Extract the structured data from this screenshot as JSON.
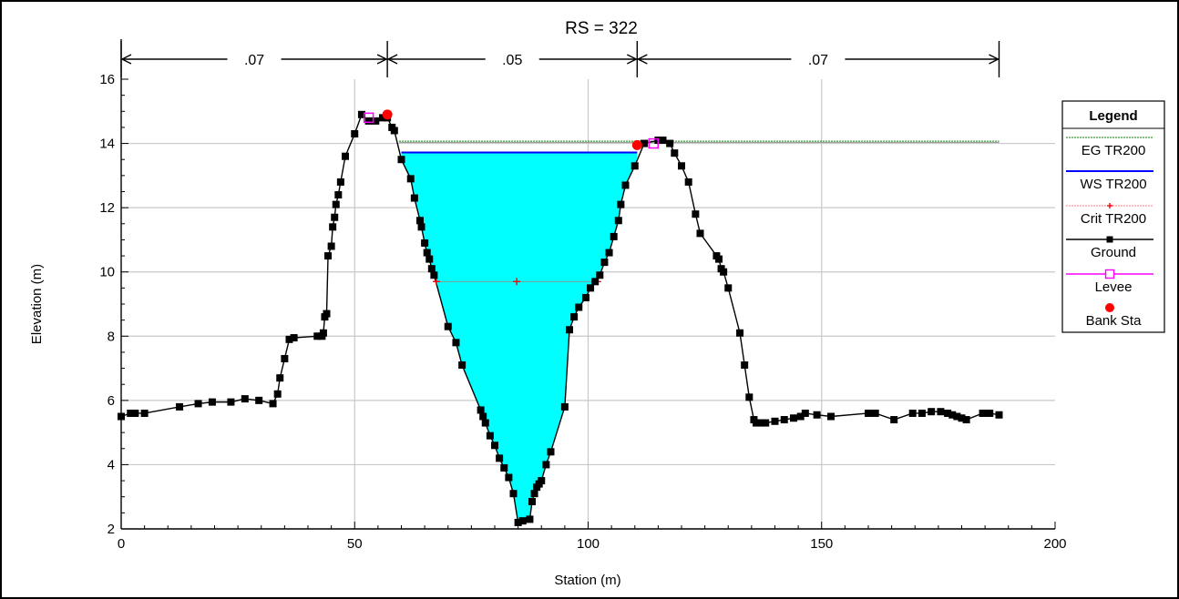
{
  "chart_data": {
    "type": "line",
    "title": "RS = 322",
    "xlabel": "Station (m)",
    "ylabel": "Elevation (m)",
    "xlim": [
      0,
      200
    ],
    "ylim": [
      2,
      16
    ],
    "xticks": [
      0,
      50,
      100,
      150,
      200
    ],
    "yticks": [
      2,
      4,
      6,
      8,
      10,
      12,
      14,
      16
    ],
    "grid": true,
    "legend_position": "right",
    "legend_title": "Legend",
    "legend": [
      "EG TR200",
      "WS TR200",
      "Crit TR200",
      "Ground",
      "Levee",
      "Bank Sta"
    ],
    "manning_n": {
      "values": [
        ".07",
        ".05",
        ".07"
      ],
      "breaks": [
        0,
        57,
        110.5,
        188
      ]
    },
    "series": [
      {
        "name": "EG TR200",
        "color": "#008000",
        "x": [
          59.5,
          188
        ],
        "y": [
          14.07,
          14.07
        ]
      },
      {
        "name": "WS TR200",
        "color": "#0000ff",
        "x": [
          60,
          110.5
        ],
        "y": [
          13.72,
          13.72
        ]
      },
      {
        "name": "Crit TR200",
        "color": "#ff0000",
        "x": [
          67.5,
          84.7,
          102
        ],
        "y": [
          9.7,
          9.7,
          9.7
        ]
      },
      {
        "name": "Ground",
        "color": "#000000",
        "x": [
          0,
          2,
          3,
          5,
          12.5,
          16.5,
          19.5,
          23.5,
          26.5,
          29.5,
          32.5,
          33.5,
          34,
          35,
          36,
          37,
          42,
          43,
          43.3,
          43.6,
          44,
          44.3,
          45,
          45.3,
          45.7,
          46,
          46.5,
          47,
          48,
          50,
          51.5,
          53,
          54.5,
          56,
          57,
          58,
          58.5,
          60,
          62,
          62.8,
          64,
          64.3,
          65,
          65.5,
          66,
          66.5,
          67,
          70,
          71.7,
          73,
          77,
          77.5,
          78,
          79,
          80,
          81,
          82,
          83,
          84,
          85,
          86,
          87.5,
          88,
          88.5,
          89,
          89.5,
          90,
          91,
          92,
          95,
          96,
          97,
          98,
          99.5,
          100.5,
          101.5,
          102.5,
          103.5,
          104.5,
          105.5,
          106.5,
          107,
          108,
          110,
          112,
          115,
          116,
          117.5,
          118.5,
          120,
          121.5,
          123,
          124,
          127.5,
          128,
          128.5,
          129,
          130,
          132.5,
          133.5,
          134.5,
          135.5,
          136,
          137,
          138,
          140,
          142,
          144,
          145.5,
          146.5,
          149,
          152,
          160,
          161.5,
          165.5,
          169.5,
          171.5,
          173.5,
          175.5,
          177,
          178,
          179,
          180,
          181,
          184.5,
          186,
          188
        ],
        "y": [
          5.5,
          5.6,
          5.6,
          5.6,
          5.8,
          5.9,
          5.95,
          5.95,
          6.05,
          6.0,
          5.9,
          6.2,
          6.7,
          7.3,
          7.9,
          7.95,
          8.0,
          8.0,
          8.1,
          8.6,
          8.7,
          10.5,
          10.8,
          11.4,
          11.7,
          12.1,
          12.4,
          12.8,
          13.6,
          14.3,
          14.9,
          14.7,
          14.7,
          14.8,
          14.8,
          14.5,
          14.4,
          13.5,
          12.9,
          12.3,
          11.6,
          11.4,
          10.9,
          10.6,
          10.4,
          10.1,
          9.9,
          8.3,
          7.8,
          7.1,
          5.7,
          5.5,
          5.3,
          4.9,
          4.6,
          4.2,
          3.9,
          3.6,
          3.1,
          2.2,
          2.25,
          2.3,
          2.85,
          3.1,
          3.3,
          3.4,
          3.5,
          4.0,
          4.4,
          5.8,
          8.2,
          8.6,
          8.9,
          9.2,
          9.5,
          9.7,
          9.9,
          10.3,
          10.6,
          11.1,
          11.6,
          12.1,
          12.7,
          13.3,
          14.0,
          14.1,
          14.1,
          14.0,
          13.7,
          13.3,
          12.8,
          11.8,
          11.2,
          10.5,
          10.4,
          10.1,
          10.0,
          9.5,
          8.1,
          7.1,
          6.1,
          5.4,
          5.3,
          5.3,
          5.3,
          5.35,
          5.4,
          5.45,
          5.5,
          5.6,
          5.55,
          5.5,
          5.6,
          5.6,
          5.4,
          5.6,
          5.6,
          5.65,
          5.65,
          5.6,
          5.55,
          5.5,
          5.45,
          5.4,
          5.6,
          5.6,
          5.55
        ]
      },
      {
        "name": "Levee",
        "color": "#ff00ff",
        "x": [
          53,
          114
        ],
        "y": [
          14.8,
          14.0
        ]
      },
      {
        "name": "Bank Sta",
        "color": "#ff0000",
        "x": [
          57,
          110.5
        ],
        "y": [
          14.9,
          13.95
        ]
      }
    ]
  }
}
